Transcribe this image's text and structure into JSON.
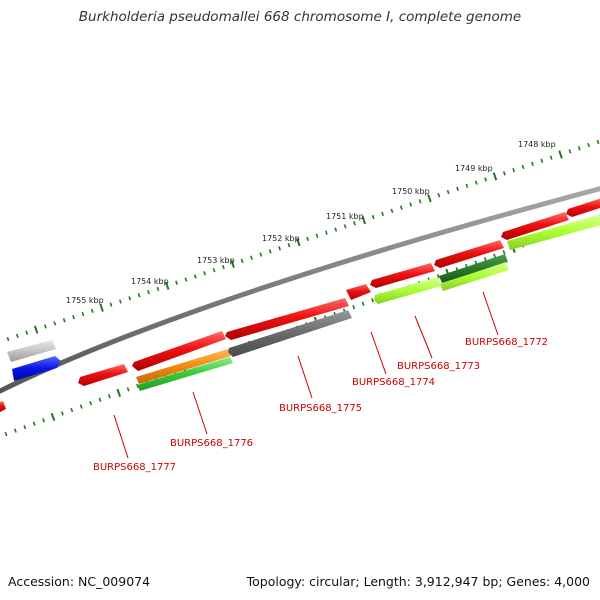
{
  "header": {
    "title": "Burkholderia pseudomallei 668 chromosome I, complete genome"
  },
  "footer": {
    "accession": "Accession: NC_009074",
    "summary": "Topology: circular; Length: 3,912,947 bp; Genes: 4,000"
  },
  "ruler": {
    "labels": [
      "1748 kbp",
      "1749 kbp",
      "1750 kbp",
      "1751 kbp",
      "1752 kbp",
      "1753 kbp",
      "1754 kbp",
      "1755 kbp"
    ]
  },
  "genes": [
    {
      "label": "BURPS668_1772"
    },
    {
      "label": "BURPS668_1773"
    },
    {
      "label": "BURPS668_1774"
    },
    {
      "label": "BURPS668_1775"
    },
    {
      "label": "BURPS668_1776"
    },
    {
      "label": "BURPS668_1777"
    }
  ],
  "colors": {
    "backbone": "#7a7a7a",
    "tick": "#1e7a1e",
    "cds_red": "#e01010",
    "cds_grey": "#6e6e6e",
    "cds_lime": "#aaff33",
    "cds_darkgreen": "#2a7a2a",
    "cds_orange": "#f08a10",
    "cds_green": "#3cc83c",
    "cds_blue": "#0a14e6",
    "cds_lightgrey": "#b8b8b8",
    "label": "#cc0000"
  }
}
